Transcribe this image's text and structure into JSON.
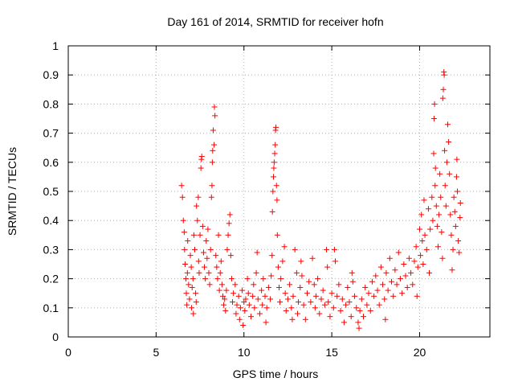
{
  "chart_data": {
    "type": "scatter",
    "title": "Day 161 of 2014, SRMTID for receiver hofn",
    "xlabel": "GPS time / hours",
    "ylabel": "SRMTID / TECUs",
    "xlim": [
      0,
      24
    ],
    "ylim": [
      0,
      1
    ],
    "xticks": [
      0,
      5,
      10,
      15,
      20
    ],
    "xtick_labels": [
      "0",
      "5",
      "10",
      "15",
      "20"
    ],
    "yticks": [
      0,
      0.1,
      0.2,
      0.3,
      0.4,
      0.5,
      0.6,
      0.7,
      0.8,
      0.9,
      1
    ],
    "ytick_labels": [
      "0",
      "0.1",
      "0.2",
      "0.3",
      "0.4",
      "0.5",
      "0.6",
      "0.7",
      "0.8",
      "0.9",
      "1"
    ],
    "grid": true,
    "marker": "+",
    "color": "#ff0000",
    "series": [
      {
        "name": "SRMTID",
        "points": [
          [
            6.45,
            0.52
          ],
          [
            6.5,
            0.48
          ],
          [
            6.55,
            0.4
          ],
          [
            6.6,
            0.36
          ],
          [
            6.62,
            0.3
          ],
          [
            6.65,
            0.25
          ],
          [
            6.7,
            0.2
          ],
          [
            6.72,
            0.15
          ],
          [
            6.75,
            0.11
          ],
          [
            6.78,
            0.22
          ],
          [
            6.8,
            0.33
          ],
          [
            6.85,
            0.18
          ],
          [
            6.9,
            0.13
          ],
          [
            6.95,
            0.28
          ],
          [
            7.0,
            0.24
          ],
          [
            7.02,
            0.1
          ],
          [
            7.05,
            0.17
          ],
          [
            7.1,
            0.2
          ],
          [
            7.12,
            0.08
          ],
          [
            7.15,
            0.35
          ],
          [
            7.2,
            0.3
          ],
          [
            7.25,
            0.15
          ],
          [
            7.28,
            0.12
          ],
          [
            7.3,
            0.45
          ],
          [
            7.35,
            0.4
          ],
          [
            7.4,
            0.48
          ],
          [
            7.42,
            0.26
          ],
          [
            7.45,
            0.22
          ],
          [
            7.5,
            0.35
          ],
          [
            7.55,
            0.58
          ],
          [
            7.58,
            0.61
          ],
          [
            7.6,
            0.62
          ],
          [
            7.65,
            0.38
          ],
          [
            7.7,
            0.29
          ],
          [
            7.75,
            0.24
          ],
          [
            7.8,
            0.2
          ],
          [
            7.85,
            0.33
          ],
          [
            7.9,
            0.27
          ],
          [
            7.95,
            0.37
          ],
          [
            8.0,
            0.22
          ],
          [
            8.05,
            0.18
          ],
          [
            8.1,
            0.3
          ],
          [
            8.15,
            0.48
          ],
          [
            8.18,
            0.52
          ],
          [
            8.2,
            0.6
          ],
          [
            8.22,
            0.64
          ],
          [
            8.25,
            0.71
          ],
          [
            8.3,
            0.66
          ],
          [
            8.32,
            0.79
          ],
          [
            8.35,
            0.76
          ],
          [
            8.4,
            0.28
          ],
          [
            8.45,
            0.24
          ],
          [
            8.5,
            0.2
          ],
          [
            8.55,
            0.35
          ],
          [
            8.6,
            0.16
          ],
          [
            8.65,
            0.22
          ],
          [
            8.7,
            0.26
          ],
          [
            8.75,
            0.18
          ],
          [
            8.8,
            0.14
          ],
          [
            8.85,
            0.11
          ],
          [
            8.9,
            0.13
          ],
          [
            8.95,
            0.09
          ],
          [
            9.0,
            0.16
          ],
          [
            9.05,
            0.3
          ],
          [
            9.1,
            0.35
          ],
          [
            9.15,
            0.39
          ],
          [
            9.2,
            0.42
          ],
          [
            9.25,
            0.28
          ],
          [
            9.3,
            0.2
          ],
          [
            9.35,
            0.12
          ],
          [
            9.4,
            0.15
          ],
          [
            9.5,
            0.18
          ],
          [
            9.55,
            0.08
          ],
          [
            9.6,
            0.11
          ],
          [
            9.7,
            0.14
          ],
          [
            9.75,
            0.06
          ],
          [
            9.8,
            0.1
          ],
          [
            9.9,
            0.16
          ],
          [
            9.95,
            0.04
          ],
          [
            10.0,
            0.12
          ],
          [
            10.05,
            0.09
          ],
          [
            10.1,
            0.13
          ],
          [
            10.2,
            0.2
          ],
          [
            10.25,
            0.15
          ],
          [
            10.3,
            0.11
          ],
          [
            10.4,
            0.07
          ],
          [
            10.5,
            0.14
          ],
          [
            10.55,
            0.18
          ],
          [
            10.6,
            0.1
          ],
          [
            10.7,
            0.22
          ],
          [
            10.75,
            0.29
          ],
          [
            10.8,
            0.13
          ],
          [
            10.9,
            0.08
          ],
          [
            11.0,
            0.16
          ],
          [
            11.05,
            0.11
          ],
          [
            11.1,
            0.2
          ],
          [
            11.2,
            0.14
          ],
          [
            11.25,
            0.05
          ],
          [
            11.3,
            0.1
          ],
          [
            11.4,
            0.17
          ],
          [
            11.5,
            0.13
          ],
          [
            11.55,
            0.21
          ],
          [
            11.6,
            0.28
          ],
          [
            11.62,
            0.43
          ],
          [
            11.65,
            0.5
          ],
          [
            11.68,
            0.55
          ],
          [
            11.7,
            0.58
          ],
          [
            11.72,
            0.6
          ],
          [
            11.75,
            0.63
          ],
          [
            11.78,
            0.66
          ],
          [
            11.8,
            0.71
          ],
          [
            11.82,
            0.72
          ],
          [
            11.85,
            0.52
          ],
          [
            11.88,
            0.47
          ],
          [
            11.9,
            0.35
          ],
          [
            11.95,
            0.24
          ],
          [
            12.0,
            0.17
          ],
          [
            12.05,
            0.12
          ],
          [
            12.1,
            0.2
          ],
          [
            12.2,
            0.26
          ],
          [
            12.3,
            0.31
          ],
          [
            12.35,
            0.15
          ],
          [
            12.4,
            0.09
          ],
          [
            12.5,
            0.13
          ],
          [
            12.6,
            0.18
          ],
          [
            12.7,
            0.1
          ],
          [
            12.75,
            0.06
          ],
          [
            12.8,
            0.14
          ],
          [
            12.9,
            0.3
          ],
          [
            13.0,
            0.22
          ],
          [
            13.05,
            0.08
          ],
          [
            13.1,
            0.12
          ],
          [
            13.2,
            0.17
          ],
          [
            13.25,
            0.26
          ],
          [
            13.3,
            0.21
          ],
          [
            13.4,
            0.11
          ],
          [
            13.5,
            0.06
          ],
          [
            13.6,
            0.15
          ],
          [
            13.7,
            0.19
          ],
          [
            13.8,
            0.12
          ],
          [
            13.9,
            0.27
          ],
          [
            14.0,
            0.18
          ],
          [
            14.05,
            0.1
          ],
          [
            14.1,
            0.14
          ],
          [
            14.2,
            0.2
          ],
          [
            14.3,
            0.08
          ],
          [
            14.4,
            0.13
          ],
          [
            14.5,
            0.16
          ],
          [
            14.6,
            0.11
          ],
          [
            14.7,
            0.3
          ],
          [
            14.75,
            0.24
          ],
          [
            14.8,
            0.12
          ],
          [
            14.9,
            0.07
          ],
          [
            15.0,
            0.15
          ],
          [
            15.1,
            0.1
          ],
          [
            15.15,
            0.3
          ],
          [
            15.2,
            0.26
          ],
          [
            15.3,
            0.14
          ],
          [
            15.4,
            0.18
          ],
          [
            15.5,
            0.09
          ],
          [
            15.6,
            0.13
          ],
          [
            15.7,
            0.05
          ],
          [
            15.8,
            0.11
          ],
          [
            15.9,
            0.17
          ],
          [
            16.0,
            0.12
          ],
          [
            16.1,
            0.07
          ],
          [
            16.15,
            0.22
          ],
          [
            16.2,
            0.19
          ],
          [
            16.3,
            0.14
          ],
          [
            16.4,
            0.1
          ],
          [
            16.5,
            0.05
          ],
          [
            16.55,
            0.03
          ],
          [
            16.6,
            0.09
          ],
          [
            16.7,
            0.13
          ],
          [
            16.8,
            0.07
          ],
          [
            16.9,
            0.17
          ],
          [
            17.0,
            0.11
          ],
          [
            17.1,
            0.15
          ],
          [
            17.2,
            0.09
          ],
          [
            17.3,
            0.19
          ],
          [
            17.4,
            0.14
          ],
          [
            17.5,
            0.21
          ],
          [
            17.6,
            0.16
          ],
          [
            17.7,
            0.11
          ],
          [
            17.8,
            0.24
          ],
          [
            17.9,
            0.18
          ],
          [
            18.0,
            0.13
          ],
          [
            18.05,
            0.06
          ],
          [
            18.1,
            0.22
          ],
          [
            18.2,
            0.16
          ],
          [
            18.3,
            0.27
          ],
          [
            18.4,
            0.19
          ],
          [
            18.5,
            0.14
          ],
          [
            18.6,
            0.23
          ],
          [
            18.7,
            0.18
          ],
          [
            18.8,
            0.29
          ],
          [
            18.9,
            0.2
          ],
          [
            19.0,
            0.15
          ],
          [
            19.1,
            0.25
          ],
          [
            19.2,
            0.21
          ],
          [
            19.3,
            0.17
          ],
          [
            19.4,
            0.27
          ],
          [
            19.5,
            0.22
          ],
          [
            19.6,
            0.18
          ],
          [
            19.7,
            0.26
          ],
          [
            19.8,
            0.31
          ],
          [
            19.85,
            0.14
          ],
          [
            19.9,
            0.24
          ],
          [
            20.0,
            0.37
          ],
          [
            20.05,
            0.28
          ],
          [
            20.1,
            0.42
          ],
          [
            20.15,
            0.33
          ],
          [
            20.2,
            0.25
          ],
          [
            20.25,
            0.47
          ],
          [
            20.3,
            0.35
          ],
          [
            20.4,
            0.3
          ],
          [
            20.5,
            0.44
          ],
          [
            20.55,
            0.22
          ],
          [
            20.6,
            0.37
          ],
          [
            20.7,
            0.48
          ],
          [
            20.75,
            0.4
          ],
          [
            20.8,
            0.63
          ],
          [
            20.82,
            0.75
          ],
          [
            20.85,
            0.8
          ],
          [
            20.88,
            0.52
          ],
          [
            20.9,
            0.58
          ],
          [
            20.95,
            0.45
          ],
          [
            21.0,
            0.38
          ],
          [
            21.05,
            0.31
          ],
          [
            21.1,
            0.42
          ],
          [
            21.15,
            0.56
          ],
          [
            21.2,
            0.48
          ],
          [
            21.25,
            0.36
          ],
          [
            21.3,
            0.27
          ],
          [
            21.32,
            0.82
          ],
          [
            21.35,
            0.85
          ],
          [
            21.38,
            0.91
          ],
          [
            21.4,
            0.9
          ],
          [
            21.42,
            0.64
          ],
          [
            21.45,
            0.52
          ],
          [
            21.5,
            0.45
          ],
          [
            21.55,
            0.6
          ],
          [
            21.6,
            0.73
          ],
          [
            21.65,
            0.67
          ],
          [
            21.7,
            0.56
          ],
          [
            21.75,
            0.42
          ],
          [
            21.8,
            0.35
          ],
          [
            21.85,
            0.23
          ],
          [
            21.9,
            0.3
          ],
          [
            21.95,
            0.48
          ],
          [
            22.0,
            0.43
          ],
          [
            22.05,
            0.38
          ],
          [
            22.1,
            0.55
          ],
          [
            22.12,
            0.61
          ],
          [
            22.15,
            0.5
          ],
          [
            22.2,
            0.33
          ],
          [
            22.25,
            0.29
          ],
          [
            22.3,
            0.41
          ],
          [
            22.32,
            0.46
          ]
        ]
      }
    ]
  }
}
